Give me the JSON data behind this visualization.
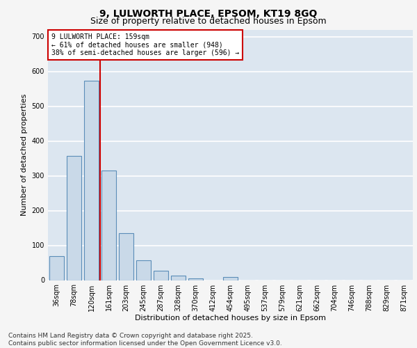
{
  "title": "9, LULWORTH PLACE, EPSOM, KT19 8GQ",
  "subtitle": "Size of property relative to detached houses in Epsom",
  "xlabel": "Distribution of detached houses by size in Epsom",
  "ylabel": "Number of detached properties",
  "categories": [
    "36sqm",
    "78sqm",
    "120sqm",
    "161sqm",
    "203sqm",
    "245sqm",
    "287sqm",
    "328sqm",
    "370sqm",
    "412sqm",
    "454sqm",
    "495sqm",
    "537sqm",
    "579sqm",
    "621sqm",
    "662sqm",
    "704sqm",
    "746sqm",
    "788sqm",
    "829sqm",
    "871sqm"
  ],
  "values": [
    70,
    358,
    573,
    315,
    135,
    57,
    27,
    14,
    5,
    0,
    9,
    0,
    0,
    0,
    0,
    0,
    0,
    0,
    0,
    0,
    0
  ],
  "bar_color": "#c9d9e8",
  "bar_edge_color": "#5b8db8",
  "background_color": "#dce6f0",
  "grid_color": "#ffffff",
  "fig_bg_color": "#f5f5f5",
  "vline_color": "#cc0000",
  "annotation_text": "9 LULWORTH PLACE: 159sqm\n← 61% of detached houses are smaller (948)\n38% of semi-detached houses are larger (596) →",
  "annotation_box_color": "#cc0000",
  "ylim": [
    0,
    720
  ],
  "yticks": [
    0,
    100,
    200,
    300,
    400,
    500,
    600,
    700
  ],
  "footer": "Contains HM Land Registry data © Crown copyright and database right 2025.\nContains public sector information licensed under the Open Government Licence v3.0.",
  "title_fontsize": 10,
  "subtitle_fontsize": 9,
  "label_fontsize": 8,
  "tick_fontsize": 7,
  "footer_fontsize": 6.5
}
